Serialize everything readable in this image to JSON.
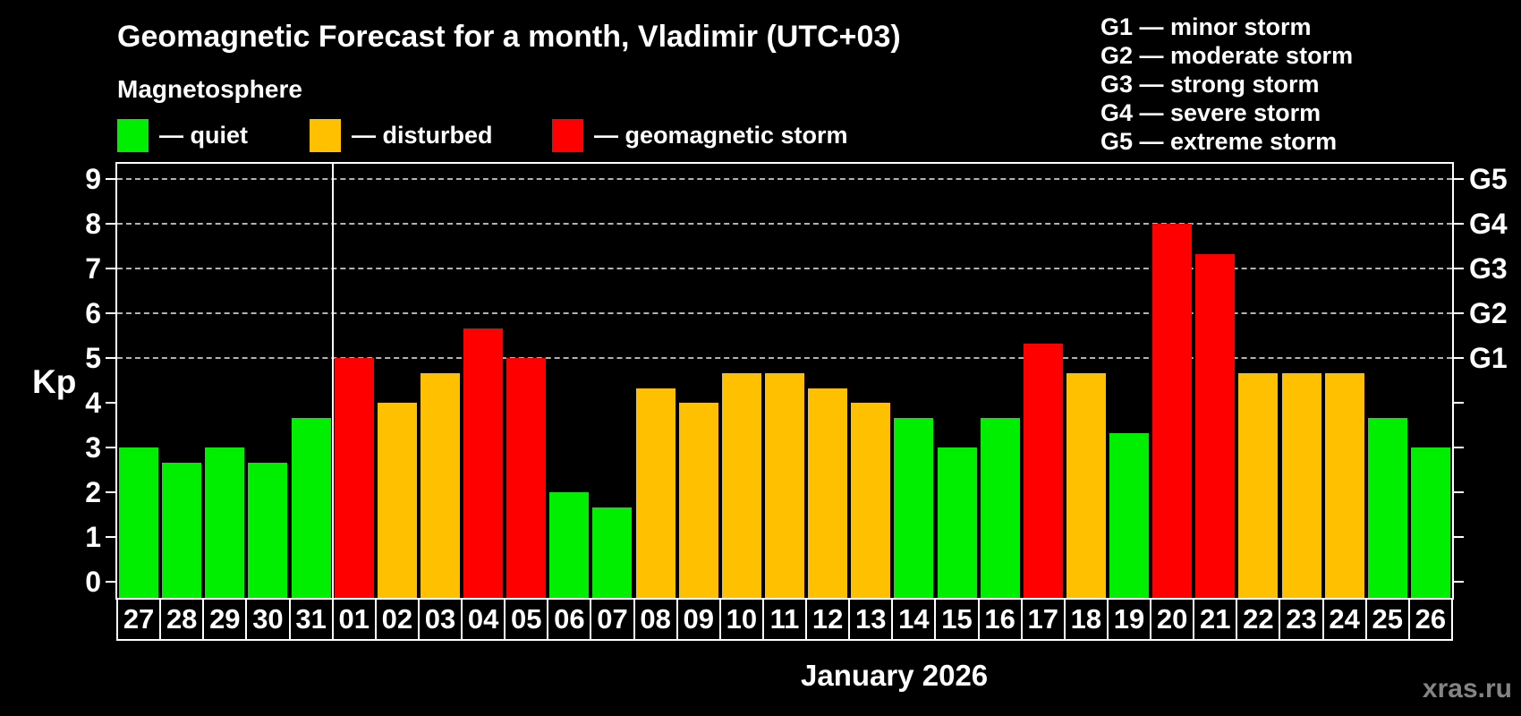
{
  "header": {
    "title": "Geomagnetic Forecast for a month, Vladimir (UTC+03)",
    "subtitle": "Magnetosphere"
  },
  "legend": {
    "items": [
      {
        "key": "quiet",
        "label": "— quiet"
      },
      {
        "key": "disturbed",
        "label": "— disturbed"
      },
      {
        "key": "storm",
        "label": "— geomagnetic storm"
      }
    ]
  },
  "g_legend": {
    "items": [
      "G1 — minor storm",
      "G2 — moderate storm",
      "G3 — strong storm",
      "G4 — severe storm",
      "G5 — extreme storm"
    ]
  },
  "colors": {
    "quiet": "#00ee00",
    "disturbed": "#ffc000",
    "storm": "#ff0000",
    "grid": "#b3b3b3",
    "axis": "#ffffff",
    "watermark": "#848484"
  },
  "chart_data": {
    "type": "bar",
    "title": "Geomagnetic Forecast for a month, Vladimir (UTC+03)",
    "xlabel": "January 2026",
    "ylabel": "Kp",
    "ylim": [
      0,
      9
    ],
    "yticks": [
      0,
      1,
      2,
      3,
      4,
      5,
      6,
      7,
      8,
      9
    ],
    "gridline_values": [
      5,
      6,
      7,
      8,
      9
    ],
    "grid": "horizontal dashed lines at storm levels G1–G5 (Kp 5–9)",
    "legend_position": "top-left (status colors) and top-right (G scale)",
    "right_axis": [
      {
        "value": 5,
        "label": "G1"
      },
      {
        "value": 6,
        "label": "G2"
      },
      {
        "value": 7,
        "label": "G3"
      },
      {
        "value": 8,
        "label": "G4"
      },
      {
        "value": 9,
        "label": "G5"
      }
    ],
    "month_separator_after": "31",
    "categories": [
      "27",
      "28",
      "29",
      "30",
      "31",
      "01",
      "02",
      "03",
      "04",
      "05",
      "06",
      "07",
      "08",
      "09",
      "10",
      "11",
      "12",
      "13",
      "14",
      "15",
      "16",
      "17",
      "18",
      "19",
      "20",
      "21",
      "22",
      "23",
      "24",
      "25",
      "26"
    ],
    "bars": [
      {
        "day": "27",
        "value": 3,
        "status": "quiet"
      },
      {
        "day": "28",
        "value": 2.67,
        "status": "quiet"
      },
      {
        "day": "29",
        "value": 3,
        "status": "quiet"
      },
      {
        "day": "30",
        "value": 2.67,
        "status": "quiet"
      },
      {
        "day": "31",
        "value": 3.67,
        "status": "quiet"
      },
      {
        "day": "01",
        "value": 5,
        "status": "storm"
      },
      {
        "day": "02",
        "value": 4,
        "status": "disturbed"
      },
      {
        "day": "03",
        "value": 4.67,
        "status": "disturbed"
      },
      {
        "day": "04",
        "value": 5.67,
        "status": "storm"
      },
      {
        "day": "05",
        "value": 5,
        "status": "storm"
      },
      {
        "day": "06",
        "value": 2,
        "status": "quiet"
      },
      {
        "day": "07",
        "value": 1.67,
        "status": "quiet"
      },
      {
        "day": "08",
        "value": 4.33,
        "status": "disturbed"
      },
      {
        "day": "09",
        "value": 4,
        "status": "disturbed"
      },
      {
        "day": "10",
        "value": 4.67,
        "status": "disturbed"
      },
      {
        "day": "11",
        "value": 4.67,
        "status": "disturbed"
      },
      {
        "day": "12",
        "value": 4.33,
        "status": "disturbed"
      },
      {
        "day": "13",
        "value": 4,
        "status": "disturbed"
      },
      {
        "day": "14",
        "value": 3.67,
        "status": "quiet"
      },
      {
        "day": "15",
        "value": 3,
        "status": "quiet"
      },
      {
        "day": "16",
        "value": 3.67,
        "status": "quiet"
      },
      {
        "day": "17",
        "value": 5.33,
        "status": "storm"
      },
      {
        "day": "18",
        "value": 4.67,
        "status": "disturbed"
      },
      {
        "day": "19",
        "value": 3.33,
        "status": "quiet"
      },
      {
        "day": "20",
        "value": 8,
        "status": "storm"
      },
      {
        "day": "21",
        "value": 7.33,
        "status": "storm"
      },
      {
        "day": "22",
        "value": 4.67,
        "status": "disturbed"
      },
      {
        "day": "23",
        "value": 4.67,
        "status": "disturbed"
      },
      {
        "day": "24",
        "value": 4.67,
        "status": "disturbed"
      },
      {
        "day": "25",
        "value": 3.67,
        "status": "quiet"
      },
      {
        "day": "26",
        "value": 3,
        "status": "quiet"
      }
    ]
  },
  "footer": {
    "month_label": "January 2026",
    "watermark": "xras.ru"
  }
}
